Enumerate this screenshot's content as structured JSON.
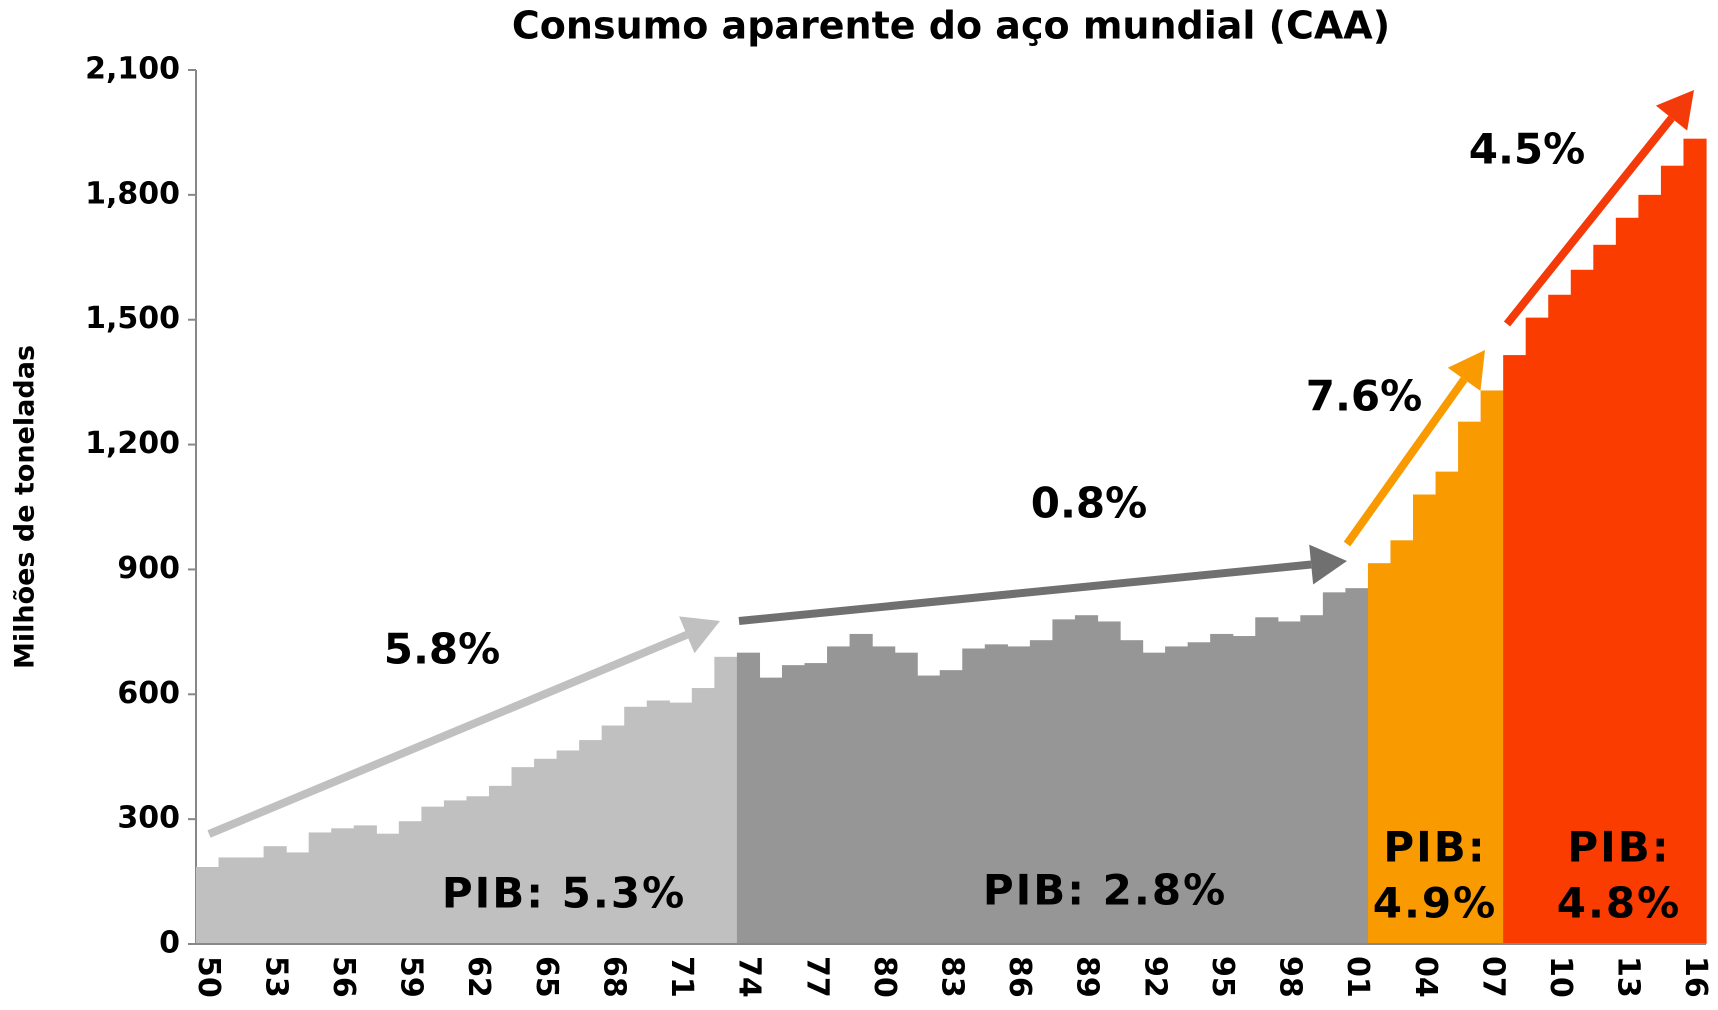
{
  "chart_data": {
    "type": "bar",
    "title": "Consumo aparente do aço mundial (CAA)",
    "y_label": "Milhões de toneladas",
    "categories": [
      "50",
      null,
      null,
      "53",
      null,
      null,
      "56",
      null,
      null,
      "59",
      null,
      null,
      "62",
      null,
      null,
      "65",
      null,
      null,
      "68",
      null,
      null,
      "71",
      null,
      null,
      "74",
      null,
      null,
      "77",
      null,
      null,
      "80",
      null,
      null,
      "83",
      null,
      null,
      "86",
      null,
      null,
      "89",
      null,
      null,
      "92",
      null,
      null,
      "95",
      null,
      null,
      "98",
      null,
      null,
      "01",
      null,
      null,
      "04",
      null,
      null,
      "07",
      null,
      null,
      "10",
      null,
      null,
      "13",
      null,
      null,
      "16"
    ],
    "values": [
      185,
      208,
      208,
      235,
      220,
      268,
      278,
      285,
      265,
      295,
      330,
      345,
      355,
      380,
      425,
      445,
      465,
      490,
      525,
      570,
      585,
      580,
      615,
      690,
      700,
      640,
      670,
      675,
      715,
      745,
      715,
      700,
      645,
      658,
      710,
      720,
      715,
      730,
      780,
      790,
      775,
      730,
      700,
      715,
      725,
      745,
      740,
      785,
      775,
      790,
      845,
      855,
      915,
      970,
      1080,
      1135,
      1255,
      1330,
      1415,
      1505,
      1560,
      1620,
      1680,
      1745,
      1800,
      1870,
      1935
    ],
    "colors": [
      "#c0c0c0",
      "#c0c0c0",
      "#c0c0c0",
      "#c0c0c0",
      "#c0c0c0",
      "#c0c0c0",
      "#c0c0c0",
      "#c0c0c0",
      "#c0c0c0",
      "#c0c0c0",
      "#c0c0c0",
      "#c0c0c0",
      "#c0c0c0",
      "#c0c0c0",
      "#c0c0c0",
      "#c0c0c0",
      "#c0c0c0",
      "#c0c0c0",
      "#c0c0c0",
      "#c0c0c0",
      "#c0c0c0",
      "#c0c0c0",
      "#c0c0c0",
      "#c0c0c0",
      "#969696",
      "#969696",
      "#969696",
      "#969696",
      "#969696",
      "#969696",
      "#969696",
      "#969696",
      "#969696",
      "#969696",
      "#969696",
      "#969696",
      "#969696",
      "#969696",
      "#969696",
      "#969696",
      "#969696",
      "#969696",
      "#969696",
      "#969696",
      "#969696",
      "#969696",
      "#969696",
      "#969696",
      "#969696",
      "#969696",
      "#969696",
      "#969696",
      "#f99a00",
      "#f99a00",
      "#f99a00",
      "#f99a00",
      "#f99a00",
      "#f99a00",
      "#fa3c00",
      "#fa3c00",
      "#fa3c00",
      "#fa3c00",
      "#fa3c00",
      "#fa3c00",
      "#fa3c00",
      "#fa3c00",
      "#fa3c00"
    ],
    "ylim": [
      0,
      2100
    ],
    "yticks": [
      0,
      300,
      600,
      900,
      {
        "value": 1200,
        "label": "1,200"
      },
      {
        "value": 1500,
        "label": "1,500"
      },
      {
        "value": 1800,
        "label": "1,800"
      },
      {
        "value": 2100,
        "label": "2,100"
      }
    ],
    "arrows": [
      {
        "label": "5.8%",
        "color": "#c0c0c0"
      },
      {
        "label": "0.8%",
        "color": "#707070"
      },
      {
        "label": "7.6%",
        "color": "#f99a00"
      },
      {
        "label": "4.5%",
        "color": "#f53a0a"
      }
    ],
    "period_labels": [
      {
        "lines": [
          "PIB: 5.3%"
        ]
      },
      {
        "lines": [
          "PIB: 2.8%"
        ]
      },
      {
        "lines": [
          "PIB:",
          "4.9%"
        ]
      },
      {
        "lines": [
          "PIB:",
          "4.8%"
        ]
      }
    ]
  }
}
